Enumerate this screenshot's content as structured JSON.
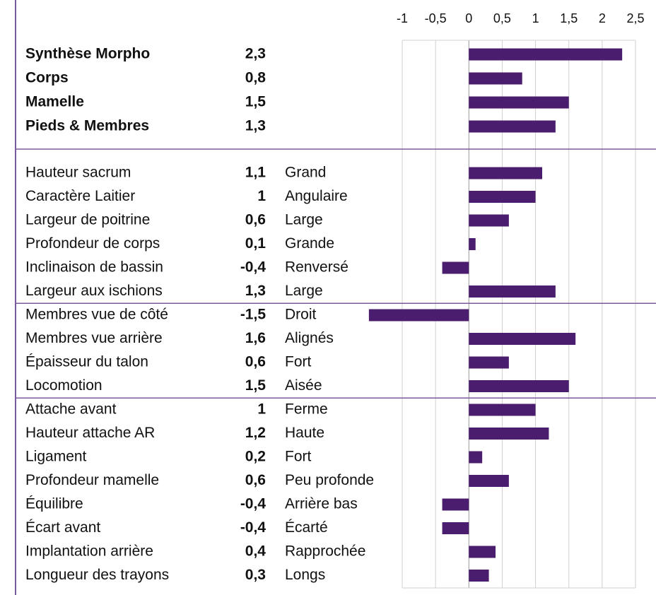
{
  "chart_data": {
    "type": "bar",
    "orientation": "horizontal",
    "color": "#4a1d6e",
    "grid": true,
    "xlim": [
      -1,
      2.5
    ],
    "xticks": [
      -1,
      {
        "value": -0.5,
        "label": "-0,5"
      },
      0,
      {
        "value": 0.5,
        "label": "0,5"
      },
      1,
      {
        "value": 1.5,
        "label": "1,5"
      },
      2,
      {
        "value": 2.5,
        "label": "2,5"
      }
    ],
    "groups": [
      {
        "bold": true,
        "rows": [
          {
            "label": "Synthèse Morpho",
            "value": 2.3,
            "value_label": "2,3"
          },
          {
            "label": "Corps",
            "value": 0.8,
            "value_label": "0,8"
          },
          {
            "label": "Mamelle",
            "value": 1.5,
            "value_label": "1,5"
          },
          {
            "label": "Pieds & Membres",
            "value": 1.3,
            "value_label": "1,3"
          }
        ]
      },
      {
        "rows": [
          {
            "label": "Hauteur sacrum",
            "value": 1.1,
            "value_label": "1,1",
            "descriptor": "Grand"
          },
          {
            "label": "Caractère Laitier",
            "value": 1,
            "value_label": "1",
            "descriptor": "Angulaire"
          },
          {
            "label": "Largeur de poitrine",
            "value": 0.6,
            "value_label": "0,6",
            "descriptor": "Large"
          },
          {
            "label": "Profondeur de corps",
            "value": 0.1,
            "value_label": "0,1",
            "descriptor": "Grande"
          },
          {
            "label": "Inclinaison de bassin",
            "value": -0.4,
            "value_label": "-0,4",
            "descriptor": "Renversé"
          },
          {
            "label": "Largeur aux ischions",
            "value": 1.3,
            "value_label": "1,3",
            "descriptor": "Large"
          }
        ]
      },
      {
        "rows": [
          {
            "label": "Membres vue de côté",
            "value": -1.5,
            "value_label": "-1,5",
            "descriptor": "Droit"
          },
          {
            "label": "Membres vue arrière",
            "value": 1.6,
            "value_label": "1,6",
            "descriptor": "Alignés"
          },
          {
            "label": "Épaisseur du talon",
            "value": 0.6,
            "value_label": "0,6",
            "descriptor": "Fort"
          },
          {
            "label": "Locomotion",
            "value": 1.5,
            "value_label": "1,5",
            "descriptor": "Aisée"
          }
        ]
      },
      {
        "rows": [
          {
            "label": "Attache avant",
            "value": 1,
            "value_label": "1",
            "descriptor": "Ferme"
          },
          {
            "label": "Hauteur attache AR",
            "value": 1.2,
            "value_label": "1,2",
            "descriptor": "Haute"
          },
          {
            "label": "Ligament",
            "value": 0.2,
            "value_label": "0,2",
            "descriptor": "Fort"
          },
          {
            "label": "Profondeur mamelle",
            "value": 0.6,
            "value_label": "0,6",
            "descriptor": "Peu profonde"
          },
          {
            "label": "Équilibre",
            "value": -0.4,
            "value_label": "-0,4",
            "descriptor": "Arrière bas"
          },
          {
            "label": "Écart avant",
            "value": -0.4,
            "value_label": "-0,4",
            "descriptor": "Écarté"
          },
          {
            "label": "Implantation arrière",
            "value": 0.4,
            "value_label": "0,4",
            "descriptor": "Rapprochée"
          },
          {
            "label": "Longueur des trayons",
            "value": 0.3,
            "value_label": "0,3",
            "descriptor": "Longs"
          }
        ]
      }
    ]
  }
}
